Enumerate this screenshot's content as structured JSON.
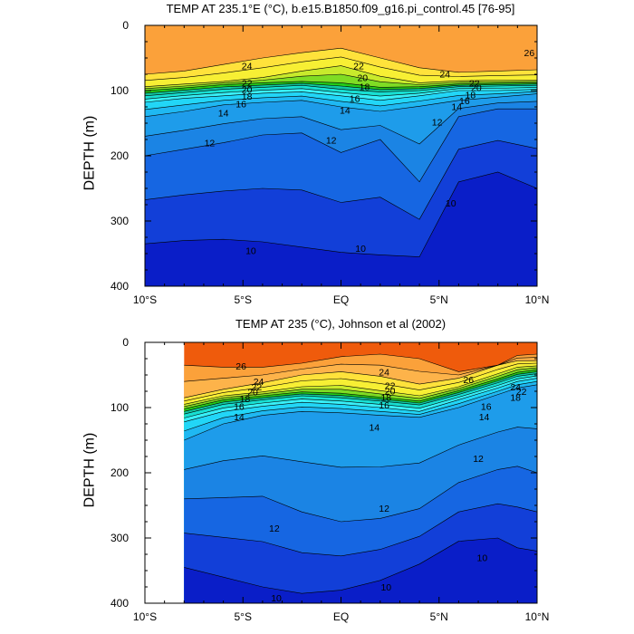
{
  "chart_data": [
    {
      "type": "heatmap",
      "title": "TEMP AT 235.1°E (°C), b.e15.B1850.f09_g16.pi_control.45 [76-95]",
      "ylabel": "DEPTH (m)",
      "xlim": [
        -10,
        10
      ],
      "ylim": [
        400,
        0
      ],
      "x_ticks": [
        -10,
        -5,
        0,
        5,
        10
      ],
      "x_tick_labels": [
        "10°S",
        "5°S",
        "EQ",
        "5°N",
        "10°N"
      ],
      "y_ticks": [
        0,
        100,
        200,
        300,
        400
      ],
      "y_tick_labels": [
        "0",
        "100",
        "200",
        "300",
        "400"
      ],
      "contour_interval": 1,
      "isotherm_depths": {
        "x": [
          -10,
          -8,
          -6,
          -4,
          -2,
          0,
          2,
          4,
          6,
          8,
          10
        ],
        "t10": [
          335,
          330,
          328,
          332,
          340,
          348,
          352,
          355,
          240,
          225,
          250
        ],
        "t12": [
          200,
          190,
          180,
          168,
          165,
          195,
          175,
          240,
          140,
          128,
          128
        ],
        "t14": [
          140,
          132,
          122,
          118,
          115,
          125,
          132,
          124,
          115,
          110,
          105
        ],
        "t16": [
          118,
          112,
          108,
          104,
          102,
          108,
          115,
          108,
          100,
          100,
          98
        ],
        "t18": [
          108,
          103,
          98,
          95,
          92,
          98,
          102,
          100,
          94,
          93,
          92
        ],
        "t20": [
          100,
          96,
          91,
          88,
          86,
          88,
          95,
          94,
          90,
          89,
          88
        ],
        "t22": [
          94,
          90,
          86,
          80,
          70,
          62,
          78,
          88,
          85,
          84,
          84
        ],
        "t24": [
          75,
          70,
          60,
          50,
          42,
          35,
          50,
          65,
          72,
          70,
          68
        ]
      },
      "contour_labels": [
        {
          "text": "26",
          "x": 9.6,
          "depth": 42
        },
        {
          "text": "24",
          "x": -4.8,
          "depth": 62
        },
        {
          "text": "24",
          "x": 5.3,
          "depth": 74
        },
        {
          "text": "22",
          "x": -4.8,
          "depth": 88
        },
        {
          "text": "22",
          "x": 0.9,
          "depth": 62
        },
        {
          "text": "22",
          "x": 6.8,
          "depth": 88
        },
        {
          "text": "20",
          "x": -4.8,
          "depth": 98
        },
        {
          "text": "20",
          "x": 1.1,
          "depth": 80
        },
        {
          "text": "20",
          "x": 6.9,
          "depth": 95
        },
        {
          "text": "18",
          "x": -4.8,
          "depth": 108
        },
        {
          "text": "18",
          "x": 1.2,
          "depth": 94
        },
        {
          "text": "18",
          "x": 6.6,
          "depth": 106
        },
        {
          "text": "16",
          "x": -5.1,
          "depth": 120
        },
        {
          "text": "16",
          "x": 0.7,
          "depth": 112
        },
        {
          "text": "16",
          "x": 6.3,
          "depth": 115
        },
        {
          "text": "14",
          "x": -6.0,
          "depth": 134
        },
        {
          "text": "14",
          "x": 0.2,
          "depth": 130
        },
        {
          "text": "14",
          "x": 5.9,
          "depth": 124
        },
        {
          "text": "12",
          "x": -6.7,
          "depth": 180
        },
        {
          "text": "12",
          "x": -0.5,
          "depth": 176
        },
        {
          "text": "12",
          "x": 4.9,
          "depth": 148
        },
        {
          "text": "10",
          "x": -4.6,
          "depth": 345
        },
        {
          "text": "10",
          "x": 1.0,
          "depth": 342
        },
        {
          "text": "10",
          "x": 5.6,
          "depth": 272
        }
      ]
    },
    {
      "type": "heatmap",
      "title": "TEMP AT 235 (°C), Johnson et al (2002)",
      "ylabel": "DEPTH (m)",
      "xlim": [
        -10,
        10
      ],
      "ylim": [
        400,
        0
      ],
      "data_xlim": [
        -8,
        10
      ],
      "x_ticks": [
        -10,
        -5,
        0,
        5,
        10
      ],
      "x_tick_labels": [
        "10°S",
        "5°S",
        "EQ",
        "5°N",
        "10°N"
      ],
      "y_ticks": [
        0,
        100,
        200,
        300,
        400
      ],
      "y_tick_labels": [
        "0",
        "100",
        "200",
        "300",
        "400"
      ],
      "contour_interval": 1,
      "isotherm_depths": {
        "x": [
          -8,
          -6,
          -4,
          -2,
          0,
          2,
          4,
          6,
          8,
          9,
          10
        ],
        "t10": [
          345,
          360,
          375,
          385,
          380,
          365,
          340,
          305,
          300,
          315,
          320
        ],
        "t12": [
          240,
          238,
          236,
          260,
          275,
          270,
          255,
          215,
          195,
          190,
          200
        ],
        "t14": [
          150,
          125,
          112,
          106,
          108,
          112,
          115,
          100,
          80,
          70,
          65
        ],
        "t16": [
          122,
          106,
          98,
          92,
          95,
          100,
          106,
          88,
          70,
          60,
          55
        ],
        "t18": [
          110,
          95,
          88,
          82,
          85,
          90,
          96,
          80,
          62,
          52,
          48
        ],
        "t20": [
          102,
          88,
          82,
          76,
          78,
          84,
          90,
          74,
          56,
          46,
          42
        ],
        "t22": [
          95,
          82,
          76,
          68,
          66,
          74,
          82,
          68,
          48,
          38,
          36
        ],
        "t24": [
          85,
          72,
          62,
          50,
          45,
          52,
          64,
          55,
          35,
          28,
          28
        ],
        "t26": [
          35,
          38,
          38,
          32,
          22,
          18,
          25,
          45,
          35,
          20,
          18
        ]
      },
      "contour_labels": [
        {
          "text": "26",
          "x": -5.1,
          "depth": 36
        },
        {
          "text": "24",
          "x": -4.2,
          "depth": 60
        },
        {
          "text": "24",
          "x": 2.2,
          "depth": 45
        },
        {
          "text": "26",
          "x": 6.5,
          "depth": 57
        },
        {
          "text": "22",
          "x": -4.3,
          "depth": 68
        },
        {
          "text": "22",
          "x": 2.5,
          "depth": 66
        },
        {
          "text": "24",
          "x": 8.9,
          "depth": 68
        },
        {
          "text": "20",
          "x": -4.5,
          "depth": 76
        },
        {
          "text": "20",
          "x": 2.5,
          "depth": 74
        },
        {
          "text": "22",
          "x": 9.2,
          "depth": 75
        },
        {
          "text": "18",
          "x": -4.9,
          "depth": 86
        },
        {
          "text": "18",
          "x": 2.3,
          "depth": 84
        },
        {
          "text": "18",
          "x": 8.9,
          "depth": 84
        },
        {
          "text": "16",
          "x": -5.2,
          "depth": 98
        },
        {
          "text": "16",
          "x": 2.2,
          "depth": 96
        },
        {
          "text": "16",
          "x": 7.4,
          "depth": 98
        },
        {
          "text": "14",
          "x": -5.2,
          "depth": 114
        },
        {
          "text": "14",
          "x": 1.7,
          "depth": 130
        },
        {
          "text": "14",
          "x": 7.3,
          "depth": 114
        },
        {
          "text": "12",
          "x": -3.4,
          "depth": 285
        },
        {
          "text": "12",
          "x": 2.2,
          "depth": 254
        },
        {
          "text": "12",
          "x": 7.0,
          "depth": 178
        },
        {
          "text": "10",
          "x": -3.3,
          "depth": 392
        },
        {
          "text": "10",
          "x": 2.3,
          "depth": 375
        },
        {
          "text": "10",
          "x": 7.2,
          "depth": 330
        }
      ]
    }
  ]
}
